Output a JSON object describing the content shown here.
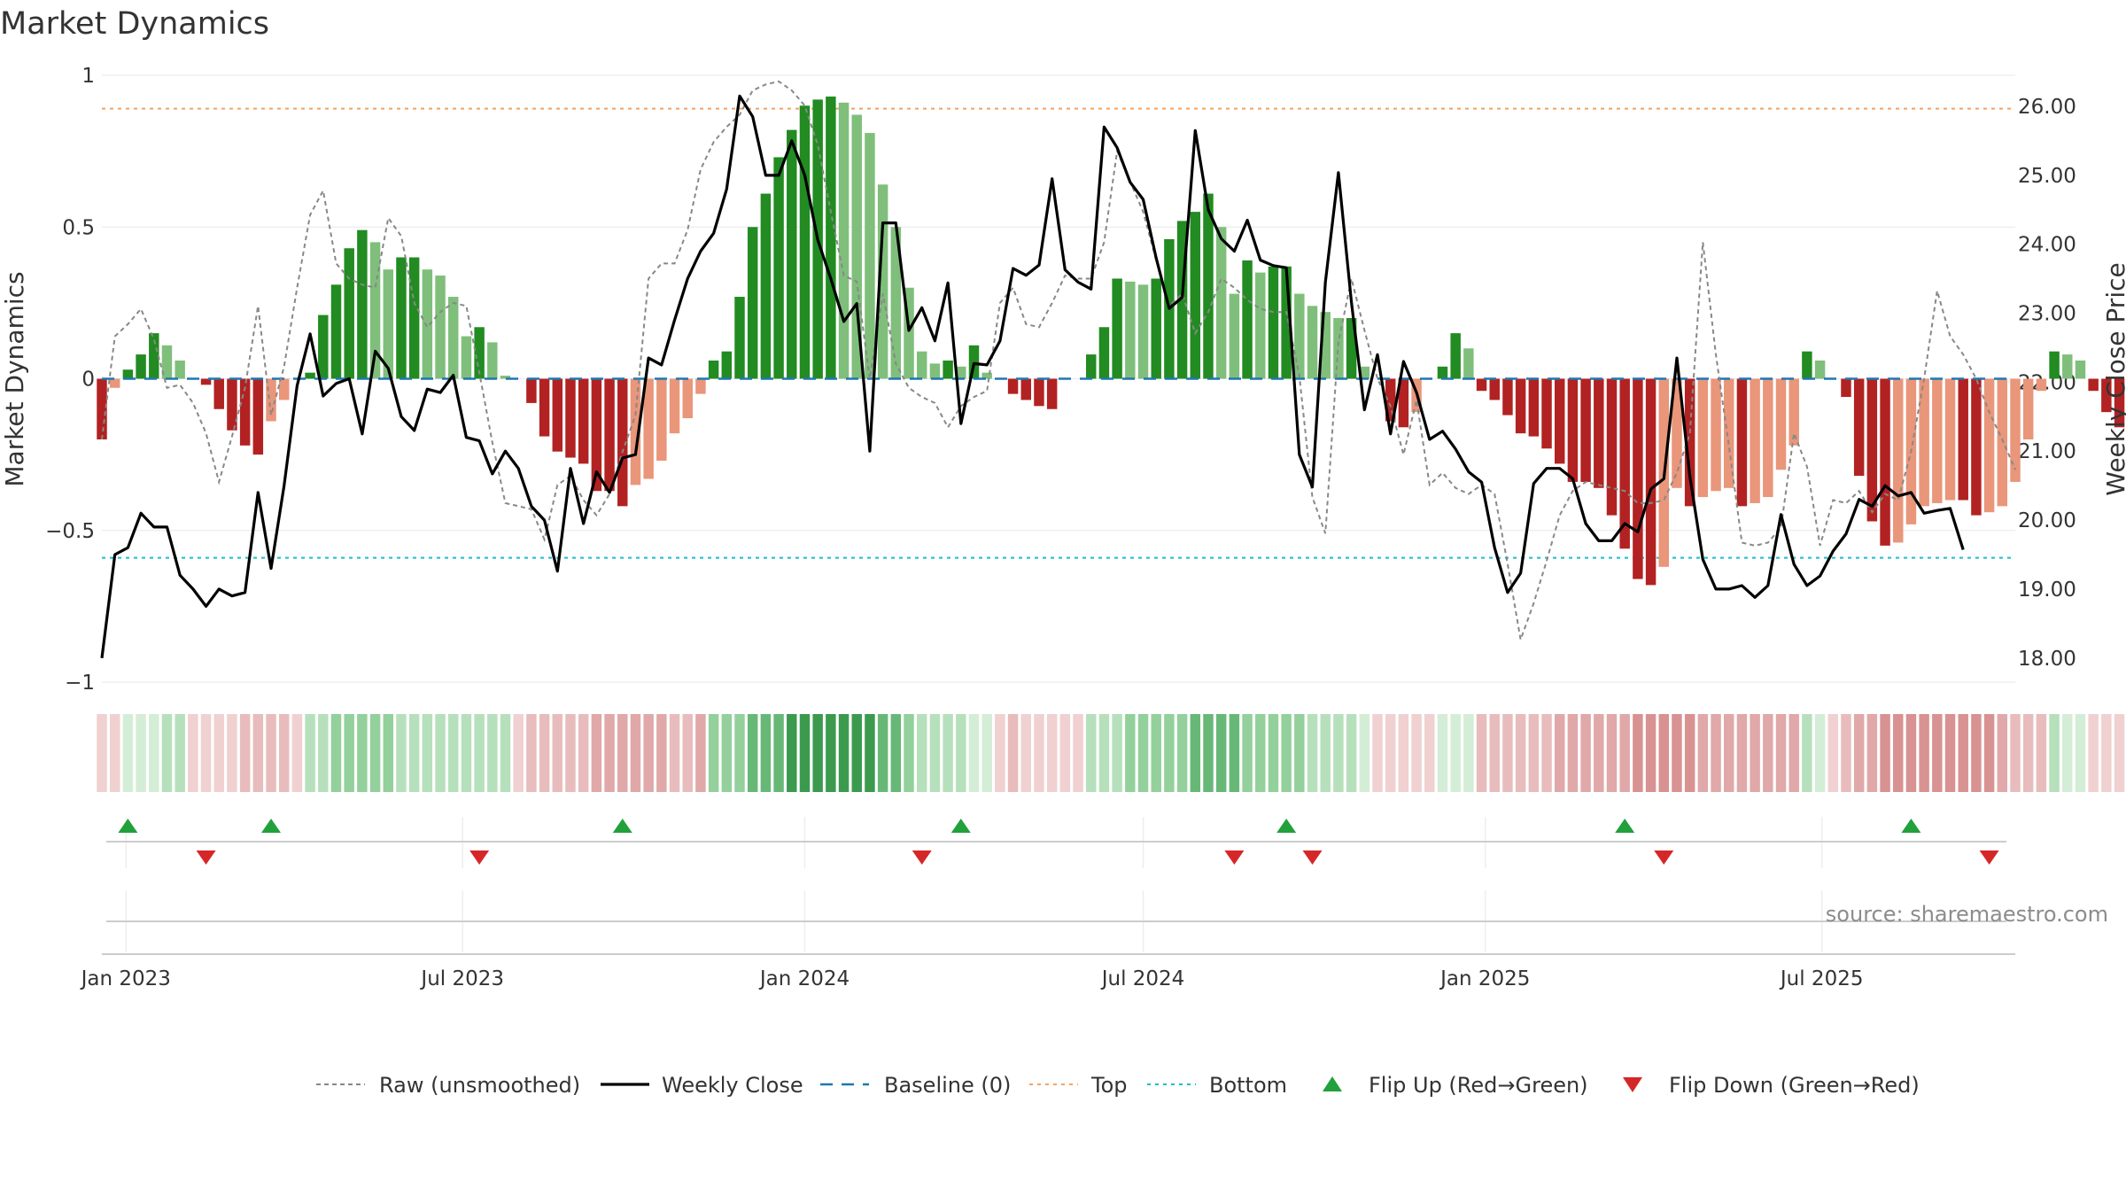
{
  "chart_data": {
    "type": "bar",
    "title": "Market Dynamics",
    "ylabel": "Market Dynamics",
    "ylabel_right": "Weekly Close Price",
    "ylim": [
      -1,
      1
    ],
    "ylim_right": [
      17.65,
      26.45
    ],
    "yticks": [
      1,
      0.5,
      0,
      -0.5,
      -1
    ],
    "ytick_labels": [
      "1",
      "0.5",
      "0",
      "−0.5",
      "−1"
    ],
    "yticks_right": [
      26,
      25,
      24,
      23,
      22,
      21,
      20,
      19,
      18
    ],
    "ytick_labels_right": [
      "26.00",
      "25.00",
      "24.00",
      "23.00",
      "22.00",
      "21.00",
      "20.00",
      "19.00",
      "18.00"
    ],
    "x_start": "2022-12-19",
    "x_end": "2025-10-13",
    "xticks": [
      "2023-01-01",
      "2023-07-01",
      "2024-01-01",
      "2024-07-01",
      "2025-01-01",
      "2025-07-01"
    ],
    "xtick_labels": [
      "Jan 2023",
      "Jul 2023",
      "Jan 2024",
      "Jul 2024",
      "Jan 2025",
      "Jul 2025"
    ],
    "top_line": 0.89,
    "bottom_line": -0.59,
    "grid": true,
    "legend_position": "bottom-center",
    "colors": {
      "strong_green": "#228b22",
      "weak_green": "#7fbf7b",
      "strong_red": "#b22222",
      "weak_red": "#e9967a",
      "close": "#000000",
      "raw": "#888888",
      "baseline": "#1f77b4",
      "top": "#f4a261",
      "bottom": "#17becf",
      "flip_up": "#22a03c",
      "flip_down": "#d62728"
    },
    "weeks": {
      "start": "2022-12-19",
      "step_days": 7,
      "dynamics": [
        -0.2,
        -0.03,
        0.03,
        0.08,
        0.15,
        0.11,
        0.06,
        0.0,
        -0.02,
        -0.1,
        -0.17,
        -0.22,
        -0.25,
        -0.14,
        -0.07,
        0.0,
        0.02,
        0.21,
        0.31,
        0.43,
        0.49,
        0.45,
        0.36,
        0.4,
        0.4,
        0.36,
        0.34,
        0.27,
        0.14,
        0.17,
        0.12,
        0.01,
        0.0,
        -0.08,
        -0.19,
        -0.24,
        -0.26,
        -0.28,
        -0.37,
        -0.37,
        -0.42,
        -0.35,
        -0.33,
        -0.27,
        -0.18,
        -0.13,
        -0.05,
        0.06,
        0.09,
        0.27,
        0.5,
        0.61,
        0.73,
        0.82,
        0.9,
        0.92,
        0.93,
        0.91,
        0.87,
        0.81,
        0.64,
        0.5,
        0.3,
        0.09,
        0.05,
        0.06,
        0.04,
        0.11,
        0.02,
        0.0,
        -0.05,
        -0.07,
        -0.09,
        -0.1,
        0.0,
        0.0,
        0.08,
        0.17,
        0.33,
        0.32,
        0.31,
        0.33,
        0.46,
        0.52,
        0.55,
        0.61,
        0.5,
        0.28,
        0.39,
        0.35,
        0.37,
        0.37,
        0.28,
        0.24,
        0.22,
        0.2,
        0.2,
        0.04,
        0.0,
        -0.14,
        -0.16,
        -0.11,
        0.0,
        0.04,
        0.15,
        0.1,
        -0.04,
        -0.07,
        -0.12,
        -0.18,
        -0.19,
        -0.23,
        -0.28,
        -0.34,
        -0.34,
        -0.36,
        -0.45,
        -0.56,
        -0.66,
        -0.68,
        -0.62,
        -0.36,
        -0.42,
        -0.39,
        -0.37,
        -0.36,
        -0.42,
        -0.41,
        -0.39,
        -0.3,
        -0.22,
        0.09,
        0.06,
        0.0,
        -0.06,
        -0.32,
        -0.47,
        -0.55,
        -0.54,
        -0.48,
        -0.42,
        -0.41,
        -0.4,
        -0.4,
        -0.45,
        -0.44,
        -0.42,
        -0.34,
        -0.2,
        -0.04,
        0.09,
        0.08,
        0.06,
        -0.04,
        -0.11,
        -0.16
      ],
      "raw": [
        -0.2,
        0.14,
        0.18,
        0.23,
        0.13,
        -0.03,
        -0.02,
        -0.08,
        -0.18,
        -0.34,
        -0.19,
        -0.03,
        0.24,
        -0.12,
        0.04,
        0.3,
        0.54,
        0.62,
        0.38,
        0.33,
        0.31,
        0.3,
        0.53,
        0.47,
        0.25,
        0.17,
        0.22,
        0.25,
        0.24,
        0.02,
        -0.21,
        -0.41,
        -0.42,
        -0.43,
        -0.53,
        -0.35,
        -0.32,
        -0.4,
        -0.45,
        -0.38,
        -0.24,
        -0.12,
        0.33,
        0.38,
        0.38,
        0.49,
        0.69,
        0.78,
        0.83,
        0.87,
        0.95,
        0.97,
        0.98,
        0.95,
        0.9,
        0.77,
        0.55,
        0.34,
        0.32,
        0.0,
        0.28,
        0.05,
        -0.03,
        -0.06,
        -0.08,
        -0.16,
        -0.09,
        -0.06,
        -0.04,
        0.25,
        0.3,
        0.18,
        0.17,
        0.25,
        0.34,
        0.33,
        0.33,
        0.45,
        0.75,
        0.65,
        0.55,
        0.39,
        0.24,
        0.28,
        0.15,
        0.22,
        0.33,
        0.3,
        0.26,
        0.23,
        0.22,
        0.22,
        0.01,
        -0.39,
        -0.51,
        0.12,
        0.33,
        0.16,
        0.0,
        -0.09,
        -0.25,
        -0.07,
        -0.35,
        -0.31,
        -0.36,
        -0.38,
        -0.35,
        -0.38,
        -0.61,
        -0.86,
        -0.74,
        -0.6,
        -0.45,
        -0.37,
        -0.34,
        -0.35,
        -0.36,
        -0.37,
        -0.41,
        -0.41,
        -0.4,
        -0.31,
        -0.18,
        0.45,
        0.08,
        -0.22,
        -0.54,
        -0.55,
        -0.54,
        -0.49,
        -0.18,
        -0.29,
        -0.55,
        -0.4,
        -0.41,
        -0.37,
        -0.44,
        -0.38,
        -0.4,
        -0.24,
        0.0,
        0.29,
        0.14,
        0.08,
        0.0,
        -0.11,
        -0.2,
        -0.3
      ],
      "close": [
        18.0,
        19.5,
        19.6,
        20.1,
        19.9,
        19.9,
        19.2,
        19.0,
        18.75,
        19.0,
        18.9,
        18.95,
        20.4,
        19.3,
        20.5,
        21.95,
        22.7,
        21.8,
        21.98,
        22.05,
        21.25,
        22.45,
        22.2,
        21.5,
        21.3,
        21.9,
        21.85,
        22.1,
        21.2,
        21.15,
        20.67,
        21.0,
        20.75,
        20.2,
        20.0,
        19.26,
        20.75,
        19.95,
        20.7,
        20.4,
        20.9,
        20.95,
        22.35,
        22.25,
        22.9,
        23.5,
        23.9,
        24.16,
        24.8,
        26.15,
        25.85,
        25.0,
        25.0,
        25.5,
        25.0,
        24.06,
        23.5,
        22.88,
        23.14,
        21.0,
        24.31,
        24.31,
        22.75,
        23.08,
        22.6,
        23.44,
        21.4,
        22.27,
        22.25,
        22.6,
        23.65,
        23.55,
        23.7,
        24.95,
        23.63,
        23.45,
        23.35,
        25.7,
        25.4,
        24.9,
        24.65,
        23.8,
        23.07,
        23.23,
        25.65,
        24.5,
        24.08,
        23.9,
        24.35,
        23.77,
        23.69,
        23.66,
        20.95,
        20.48,
        23.45,
        25.04,
        23.16,
        21.6,
        22.4,
        21.25,
        22.3,
        21.85,
        21.17,
        21.29,
        21.03,
        20.7,
        20.55,
        19.6,
        18.95,
        19.23,
        20.53,
        20.75,
        20.75,
        20.6,
        19.95,
        19.7,
        19.7,
        19.95,
        19.83,
        20.45,
        20.6,
        22.35,
        20.63,
        19.43,
        19.0,
        19.0,
        19.05,
        18.88,
        19.05,
        20.08,
        19.36,
        19.05,
        19.19,
        19.55,
        19.8,
        20.3,
        20.2,
        20.5,
        20.35,
        20.4,
        20.1,
        20.14,
        20.17,
        19.57
      ],
      "heat_level": [
        1,
        1,
        1,
        1,
        1,
        2,
        2,
        2,
        1,
        1,
        1,
        2,
        2,
        2,
        2,
        1,
        2,
        2,
        3,
        3,
        3,
        3,
        3,
        2,
        2,
        2,
        2,
        2,
        2,
        2,
        2,
        2,
        2,
        2,
        2,
        2,
        2,
        2,
        3,
        3,
        3,
        3,
        3,
        3,
        2,
        2,
        3,
        3,
        3,
        3,
        4,
        4,
        4,
        5,
        5,
        5,
        5,
        5,
        5,
        5,
        4,
        4,
        3,
        2,
        2,
        2,
        2,
        1,
        1,
        2,
        2,
        1,
        1,
        1,
        1,
        2,
        2,
        2,
        2,
        3,
        3,
        3,
        3,
        3,
        4,
        4,
        4,
        4,
        3,
        3,
        3,
        3,
        3,
        2,
        2,
        2,
        2,
        1,
        1,
        1,
        1,
        1,
        1,
        1,
        1,
        1,
        2,
        2,
        2,
        2,
        2,
        2,
        3,
        3,
        3,
        3,
        3,
        3,
        4,
        4,
        4,
        4,
        4,
        3,
        3,
        3,
        3,
        3,
        3,
        3,
        3,
        2,
        1,
        1,
        2,
        3,
        3,
        4,
        4,
        4,
        4,
        4,
        4,
        4,
        4,
        4,
        3,
        2,
        2,
        2,
        2,
        1,
        1,
        1
      ]
    },
    "flip_up": [
      "2023-01-02",
      "2023-03-20",
      "2023-09-25",
      "2024-03-25",
      "2024-09-16",
      "2025-03-17",
      "2025-08-18"
    ],
    "flip_down": [
      "2023-02-13",
      "2023-07-10",
      "2024-03-04",
      "2024-08-19",
      "2024-09-30",
      "2025-04-07",
      "2025-09-29"
    ],
    "legend": [
      {
        "label": "Raw (unsmoothed)",
        "symbol": "dash-grey"
      },
      {
        "label": "Weekly Close",
        "symbol": "solid-black"
      },
      {
        "label": "Baseline (0)",
        "symbol": "dash-blue"
      },
      {
        "label": "Top",
        "symbol": "dot-orange"
      },
      {
        "label": "Bottom",
        "symbol": "dot-cyan"
      },
      {
        "label": "Flip Up (Red→Green)",
        "symbol": "triangle-up-green"
      },
      {
        "label": "Flip Down (Green→Red)",
        "symbol": "triangle-down-red"
      }
    ],
    "source": "source: sharemaestro.com"
  }
}
